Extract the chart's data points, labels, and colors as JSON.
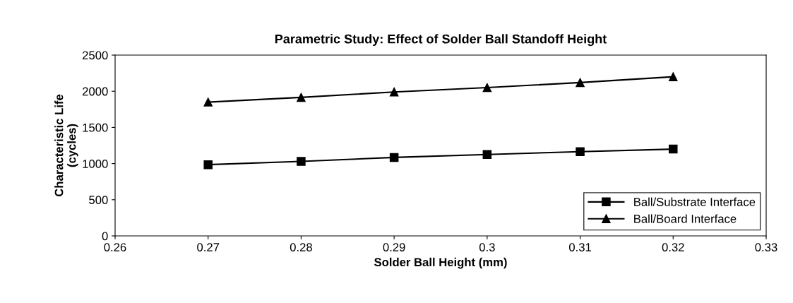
{
  "chart_data": {
    "type": "line",
    "title": "Parametric Study: Effect of Solder Ball Standoff Height",
    "xlabel": "Solder Ball Height (mm)",
    "ylabel": "Characteristic Life\n(cycles)",
    "x": [
      0.27,
      0.28,
      0.29,
      0.3,
      0.31,
      0.32
    ],
    "series": [
      {
        "name": "Ball/Substrate Interface",
        "color": "#000000",
        "marker": "square",
        "values": [
          985,
          1030,
          1085,
          1125,
          1165,
          1200
        ]
      },
      {
        "name": "Ball/Board Interface",
        "color": "#000000",
        "marker": "triangle",
        "values": [
          1850,
          1915,
          1990,
          2050,
          2120,
          2200
        ]
      }
    ],
    "xlim": [
      0.26,
      0.33
    ],
    "xticks": [
      0.26,
      0.27,
      0.28,
      0.29,
      0.3,
      0.31,
      0.32,
      0.33
    ],
    "ylim": [
      0,
      2500
    ],
    "yticks": [
      0,
      500,
      1000,
      1500,
      2000,
      2500
    ],
    "grid": false,
    "legend": "bottom right",
    "line_style": "solid"
  }
}
